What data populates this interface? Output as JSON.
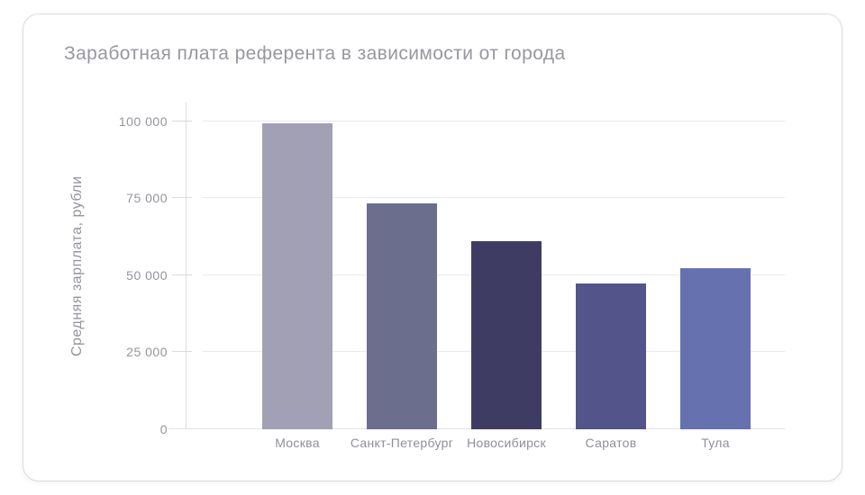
{
  "theme": {
    "page_bg": "#ffffff",
    "card_bg": "#ffffff",
    "card_border": "#dbdbe0",
    "grid_line": "#e9e9ef",
    "axis_line": "#dcdce2",
    "tick_mark": "#d9d9df",
    "title_text": "#97979f",
    "axis_text": "#94949c",
    "label_text": "#8f8f97"
  },
  "chart_data": {
    "type": "bar",
    "title": "Заработная плата референта в зависимости от города",
    "xlabel": "",
    "ylabel": "Средняя зарплата, рубли",
    "categories": [
      "Москва",
      "Санкт-Петербург",
      "Новосибирск",
      "Саратов",
      "Тула"
    ],
    "values": [
      99300,
      73200,
      61100,
      47400,
      52400
    ],
    "bar_colors": [
      "#a2a0b4",
      "#6c6e8e",
      "#3f3c64",
      "#53548a",
      "#6671b0"
    ],
    "ylim": [
      0,
      100000
    ],
    "yticks": [
      {
        "value": 100000,
        "label": "100 000"
      },
      {
        "value": 75000,
        "label": "75 000"
      },
      {
        "value": 50000,
        "label": "50 000"
      },
      {
        "value": 25000,
        "label": "25 000"
      },
      {
        "value": 0,
        "label": "0"
      }
    ],
    "grid": "horizontal",
    "legend": "none"
  }
}
